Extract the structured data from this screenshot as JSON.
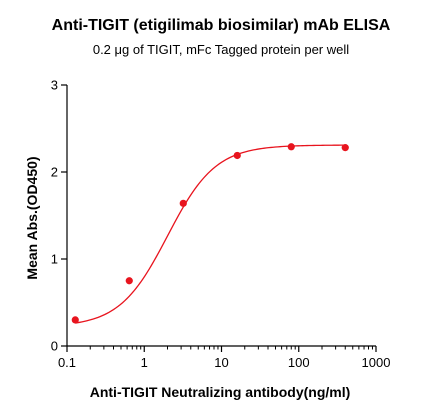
{
  "chart_data": {
    "type": "scatter",
    "title": "Anti-TIGIT (etigilimab biosimilar) mAb ELISA",
    "subtitle": "0.2 μg of TIGIT, mFc Tagged protein per well",
    "xlabel": "Anti-TIGIT Neutralizing antibody(ng/ml)",
    "ylabel": "Mean Abs.(OD450)",
    "x_scale": "log",
    "xlim": [
      0.1,
      1000
    ],
    "ylim": [
      0,
      3
    ],
    "x_ticks": [
      "0.1",
      "1",
      "10",
      "100",
      "1000"
    ],
    "y_ticks": [
      "0",
      "1",
      "2",
      "3"
    ],
    "grid": false,
    "series": [
      {
        "color": "#e8141e",
        "x": [
          0.128,
          0.64,
          3.2,
          16,
          80,
          400
        ],
        "y": [
          0.3,
          0.75,
          1.64,
          2.19,
          2.29,
          2.28
        ]
      }
    ],
    "fit": {
      "type": "4PL",
      "bottom": 0.22,
      "top": 2.31,
      "ec50": 2.0,
      "hill": 1.4,
      "color": "#e8141e"
    }
  }
}
